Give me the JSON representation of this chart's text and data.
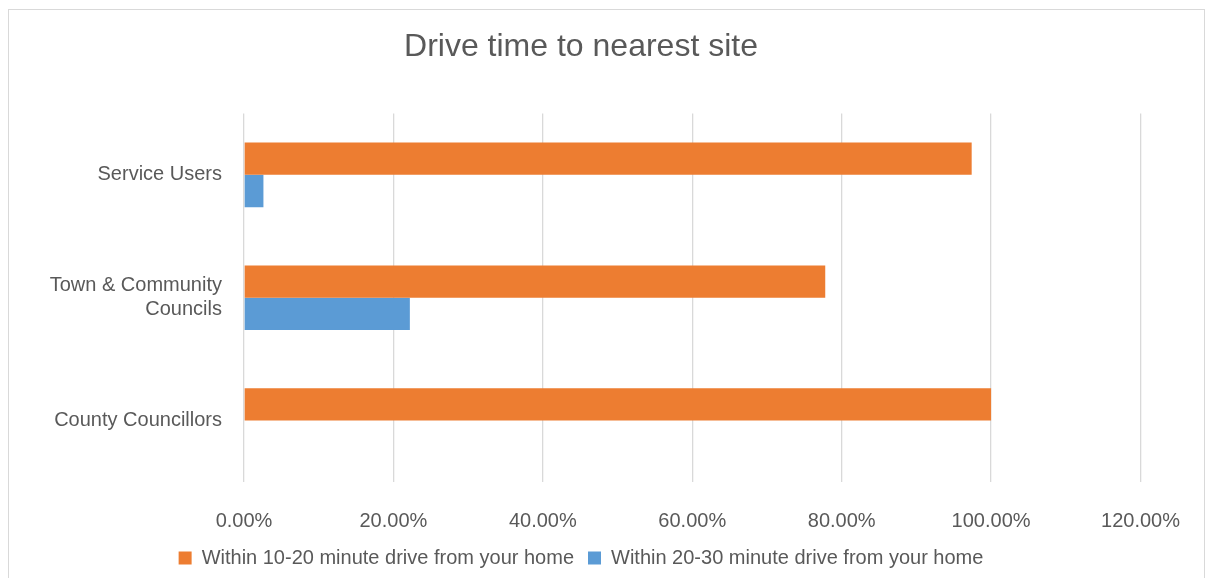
{
  "chart_data": {
    "type": "bar",
    "orientation": "horizontal",
    "title": "Drive time to nearest site",
    "categories": [
      "Service Users",
      "Town & Community Councils",
      "County Councillors"
    ],
    "series": [
      {
        "name": "Within 10-20 minute drive from your home",
        "color": "#ed7d31",
        "values": [
          97.4,
          77.8,
          100
        ]
      },
      {
        "name": "Within 20-30 minute drive from your home",
        "color": "#5b9bd5",
        "values": [
          2.6,
          22.2,
          0
        ]
      }
    ],
    "xlim": [
      0,
      120
    ],
    "xticks": [
      {
        "value": 0,
        "label": "0.00%"
      },
      {
        "value": 20,
        "label": "20.00%"
      },
      {
        "value": 40,
        "label": "40.00%"
      },
      {
        "value": 60,
        "label": "60.00%"
      },
      {
        "value": 80,
        "label": "80.00%"
      },
      {
        "value": 100,
        "label": "100.00%"
      },
      {
        "value": 120,
        "label": "120.00%"
      }
    ],
    "grid": "x",
    "legend": "bottom"
  }
}
